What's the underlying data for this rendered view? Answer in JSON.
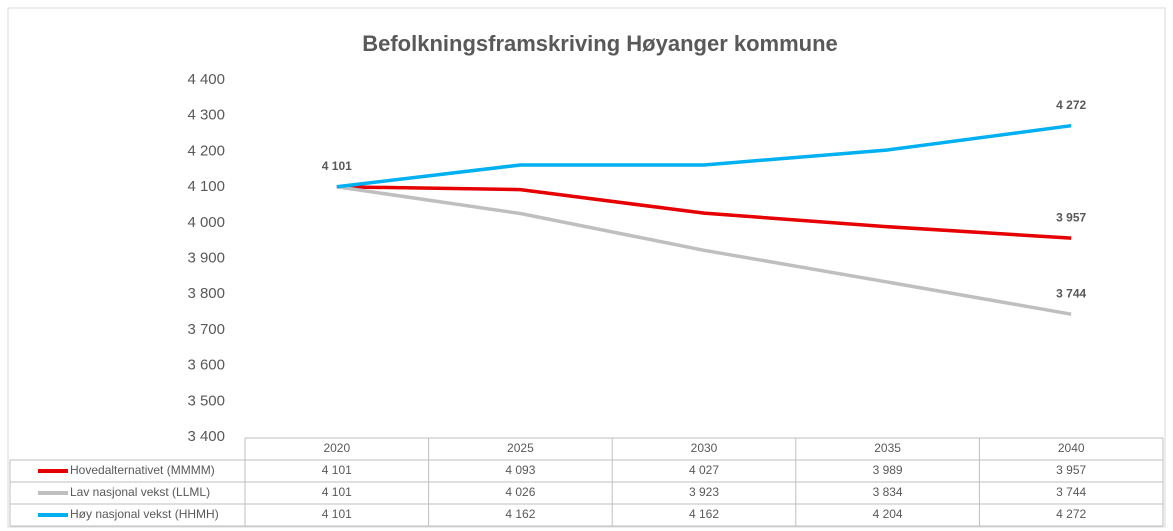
{
  "chart_data": {
    "type": "line",
    "title": "Befolkningsframskriving Høyanger kommune",
    "categories": [
      "2020",
      "2025",
      "2030",
      "2035",
      "2040"
    ],
    "ylim": [
      3400,
      4400
    ],
    "yticks": [
      {
        "value": 3400,
        "label": "3 400"
      },
      {
        "value": 3500,
        "label": "3 500"
      },
      {
        "value": 3600,
        "label": "3 600"
      },
      {
        "value": 3700,
        "label": "3 700"
      },
      {
        "value": 3800,
        "label": "3 800"
      },
      {
        "value": 3900,
        "label": "3 900"
      },
      {
        "value": 4000,
        "label": "4 000"
      },
      {
        "value": 4100,
        "label": "4 100"
      },
      {
        "value": 4200,
        "label": "4 200"
      },
      {
        "value": 4300,
        "label": "4 300"
      },
      {
        "value": 4400,
        "label": "4 400"
      }
    ],
    "data_table": true,
    "series": [
      {
        "name": "Hovedalternativet (MMMM)",
        "color": "#e60000",
        "values": [
          4101,
          4093,
          4027,
          3989,
          3957
        ],
        "value_labels": [
          "4 101",
          "4 093",
          "4 027",
          "3 989",
          "3 957"
        ],
        "labeled": [
          0,
          4
        ]
      },
      {
        "name": "Lav nasjonal vekst (LLML)",
        "color": "#bfbfbf",
        "values": [
          4101,
          4026,
          3923,
          3834,
          3744
        ],
        "value_labels": [
          "4 101",
          "4 026",
          "3 923",
          "3 834",
          "3 744"
        ],
        "labeled": [
          4
        ]
      },
      {
        "name": "Høy nasjonal vekst (HHMH)",
        "color": "#00b0f0",
        "values": [
          4101,
          4162,
          4162,
          4204,
          4272
        ],
        "value_labels": [
          "4 101",
          "4 162",
          "4 162",
          "4 204",
          "4 272"
        ],
        "labeled": [
          4
        ]
      }
    ]
  }
}
